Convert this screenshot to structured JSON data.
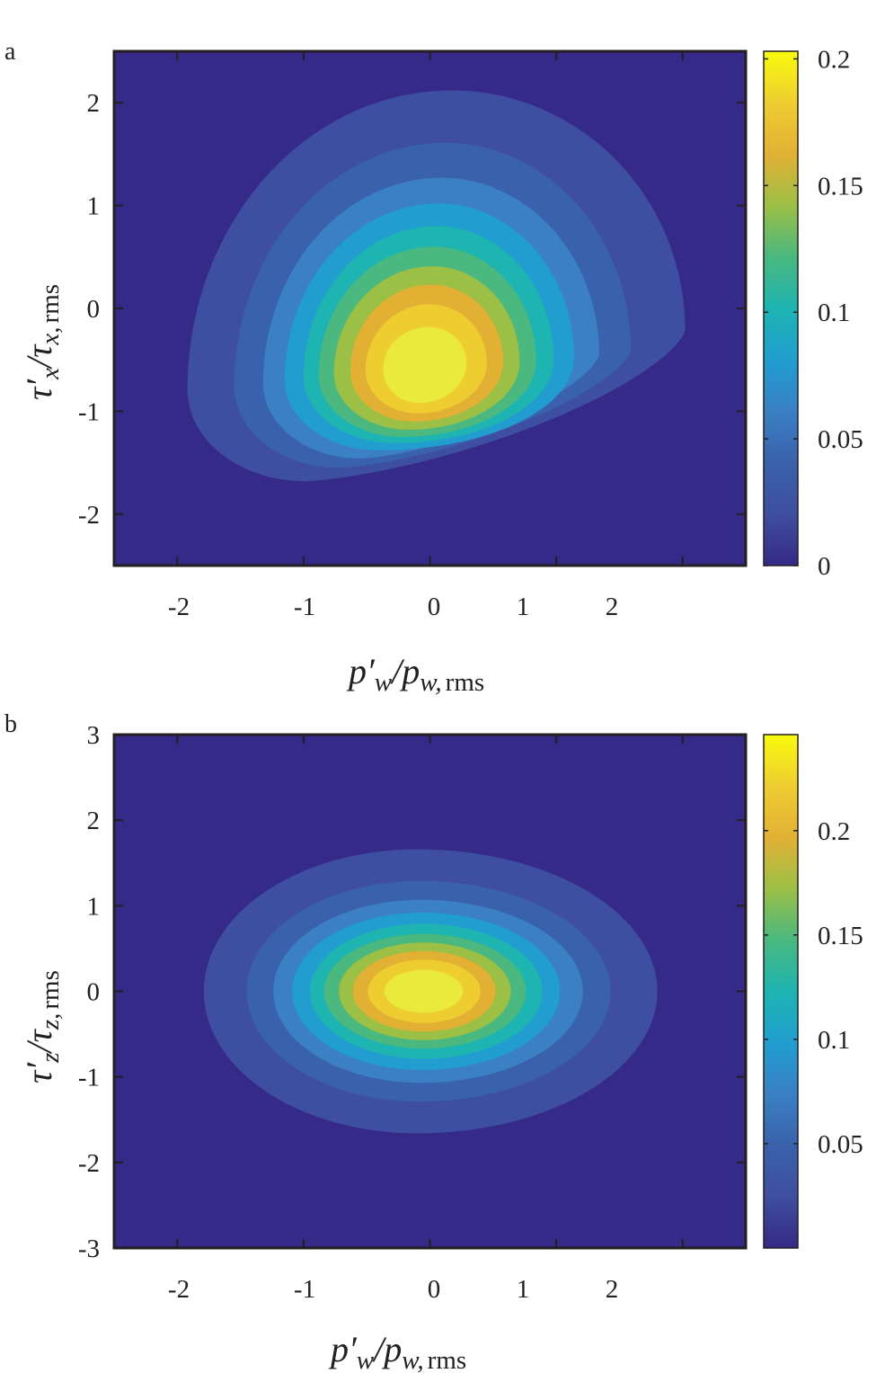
{
  "chart_data": [
    {
      "type": "contourf",
      "panel_label": "a",
      "xlabel": {
        "main": "p′",
        "sub": "w",
        "slash": "/",
        "main2": "p",
        "sub2": "w,",
        "rms": "rms"
      },
      "ylabel": {
        "main": "τ′",
        "sub": "x",
        "slash": "/",
        "main2": "τ",
        "sub2": "x,",
        "rms": "rms"
      },
      "xlim": [
        -2.5,
        2.5
      ],
      "ylim": [
        -2.5,
        2.5
      ],
      "xticks": [
        -2,
        -1,
        0,
        1,
        2
      ],
      "xtick_labels": [
        "-2",
        "-1",
        "0",
        "1",
        "2"
      ],
      "yticks": [
        2,
        1,
        0,
        -1,
        -2
      ],
      "ytick_labels": [
        "2",
        "1",
        "0",
        "-1",
        "-2"
      ],
      "colorbar": {
        "range": [
          0,
          0.203
        ],
        "ticks": [
          0,
          0.05,
          0.1,
          0.15,
          0.2
        ],
        "tick_labels": [
          "0",
          "0.05",
          "0.1",
          "0.15",
          "0.2"
        ]
      },
      "background_color": "#352a87",
      "contours": [
        {
          "level": 0.018,
          "color": "#3e4ea0",
          "left": [
            -1.92,
            -0.79
          ],
          "top": [
            0.17,
            2.12
          ],
          "right": [
            2.02,
            -0.21
          ],
          "bottom": [
            -0.99,
            -1.68
          ]
        },
        {
          "level": 0.037,
          "color": "#3a61ac",
          "left": [
            -1.55,
            -0.76
          ],
          "top": [
            0.12,
            1.61
          ],
          "right": [
            1.59,
            -0.41
          ],
          "bottom": [
            -0.72,
            -1.55
          ]
        },
        {
          "level": 0.055,
          "color": "#3a80c3",
          "left": [
            -1.32,
            -0.73
          ],
          "top": [
            0.09,
            1.27
          ],
          "right": [
            1.34,
            -0.45
          ],
          "bottom": [
            -0.55,
            -1.46
          ]
        },
        {
          "level": 0.074,
          "color": "#219ecf",
          "left": [
            -1.15,
            -0.7
          ],
          "top": [
            0.07,
            1.02
          ],
          "right": [
            1.14,
            -0.48
          ],
          "bottom": [
            -0.4,
            -1.38
          ]
        },
        {
          "level": 0.092,
          "color": "#1db4b1",
          "left": [
            -1.0,
            -0.67
          ],
          "top": [
            0.05,
            0.8
          ],
          "right": [
            0.98,
            -0.5
          ],
          "bottom": [
            -0.28,
            -1.31
          ]
        },
        {
          "level": 0.111,
          "color": "#4ab87f",
          "left": [
            -0.88,
            -0.65
          ],
          "top": [
            0.03,
            0.6
          ],
          "right": [
            0.84,
            -0.51
          ],
          "bottom": [
            -0.22,
            -1.25
          ]
        },
        {
          "level": 0.129,
          "color": "#9cbf46",
          "left": [
            -0.76,
            -0.63
          ],
          "top": [
            0.02,
            0.41
          ],
          "right": [
            0.71,
            -0.52
          ],
          "bottom": [
            -0.17,
            -1.18
          ]
        },
        {
          "level": 0.148,
          "color": "#e2b134",
          "left": [
            -0.63,
            -0.61
          ],
          "top": [
            0.01,
            0.23
          ],
          "right": [
            0.58,
            -0.52
          ],
          "bottom": [
            -0.13,
            -1.1
          ]
        },
        {
          "level": 0.166,
          "color": "#eecd31",
          "left": [
            -0.51,
            -0.6
          ],
          "top": [
            0.0,
            0.04
          ],
          "right": [
            0.45,
            -0.53
          ],
          "bottom": [
            -0.1,
            -1.02
          ]
        },
        {
          "level": 0.185,
          "color": "#e9ea3a",
          "left": [
            -0.37,
            -0.59
          ],
          "top": [
            -0.01,
            -0.18
          ],
          "right": [
            0.29,
            -0.53
          ],
          "bottom": [
            -0.09,
            -0.92
          ]
        }
      ]
    },
    {
      "type": "contourf",
      "panel_label": "b",
      "xlabel": {
        "main": "p′",
        "sub": "w",
        "slash": "/",
        "main2": "p",
        "sub2": "w,",
        "rms": "rms"
      },
      "ylabel": {
        "main": "τ′",
        "sub": "z",
        "slash": "/",
        "main2": "τ",
        "sub2": "z,",
        "rms": "rms"
      },
      "xlim": [
        -2.5,
        2.5
      ],
      "ylim": [
        -3,
        3
      ],
      "xticks": [
        -2,
        -1,
        0,
        1,
        2
      ],
      "xtick_labels": [
        "-2",
        "-1",
        "0",
        "1",
        "2"
      ],
      "yticks": [
        3,
        2,
        1,
        0,
        -1,
        -2,
        -3
      ],
      "ytick_labels": [
        "3",
        "2",
        "1",
        "0",
        "-1",
        "-2",
        "-3"
      ],
      "colorbar": {
        "range": [
          0,
          0.246
        ],
        "ticks": [
          0.05,
          0.1,
          0.15,
          0.2
        ],
        "tick_labels": [
          "0.05",
          "0.1",
          "0.15",
          "0.2"
        ]
      },
      "background_color": "#352a87",
      "contours": [
        {
          "level": 0.022,
          "color": "#3e4ea0",
          "left": [
            -1.79,
            0
          ],
          "top": [
            -0.1,
            1.66
          ],
          "right": [
            1.8,
            0
          ],
          "bottom": [
            -0.1,
            -1.66
          ]
        },
        {
          "level": 0.045,
          "color": "#3a61ac",
          "left": [
            -1.45,
            0
          ],
          "top": [
            -0.08,
            1.29
          ],
          "right": [
            1.43,
            0
          ],
          "bottom": [
            -0.08,
            -1.29
          ]
        },
        {
          "level": 0.067,
          "color": "#3a80c3",
          "left": [
            -1.24,
            0
          ],
          "top": [
            -0.07,
            1.07
          ],
          "right": [
            1.21,
            0
          ],
          "bottom": [
            -0.07,
            -1.07
          ]
        },
        {
          "level": 0.09,
          "color": "#219ecf",
          "left": [
            -1.09,
            0
          ],
          "top": [
            -0.06,
            0.92
          ],
          "right": [
            1.03,
            0
          ],
          "bottom": [
            -0.06,
            -0.92
          ]
        },
        {
          "level": 0.112,
          "color": "#1db4b1",
          "left": [
            -0.95,
            0
          ],
          "top": [
            -0.05,
            0.79
          ],
          "right": [
            0.89,
            0
          ],
          "bottom": [
            -0.05,
            -0.79
          ]
        },
        {
          "level": 0.134,
          "color": "#4ab87f",
          "left": [
            -0.84,
            0
          ],
          "top": [
            -0.05,
            0.67
          ],
          "right": [
            0.76,
            0
          ],
          "bottom": [
            -0.05,
            -0.67
          ]
        },
        {
          "level": 0.157,
          "color": "#9cbf46",
          "left": [
            -0.72,
            0
          ],
          "top": [
            -0.05,
            0.57
          ],
          "right": [
            0.64,
            0
          ],
          "bottom": [
            -0.05,
            -0.57
          ]
        },
        {
          "level": 0.179,
          "color": "#e2b134",
          "left": [
            -0.61,
            0
          ],
          "top": [
            -0.05,
            0.47
          ],
          "right": [
            0.52,
            0
          ],
          "bottom": [
            -0.05,
            -0.47
          ]
        },
        {
          "level": 0.202,
          "color": "#eecd31",
          "left": [
            -0.49,
            0
          ],
          "top": [
            -0.05,
            0.37
          ],
          "right": [
            0.4,
            0
          ],
          "bottom": [
            -0.05,
            -0.37
          ]
        },
        {
          "level": 0.224,
          "color": "#e9ea3a",
          "left": [
            -0.36,
            0
          ],
          "top": [
            -0.05,
            0.25
          ],
          "right": [
            0.26,
            0
          ],
          "bottom": [
            -0.05,
            -0.25
          ]
        }
      ]
    }
  ]
}
